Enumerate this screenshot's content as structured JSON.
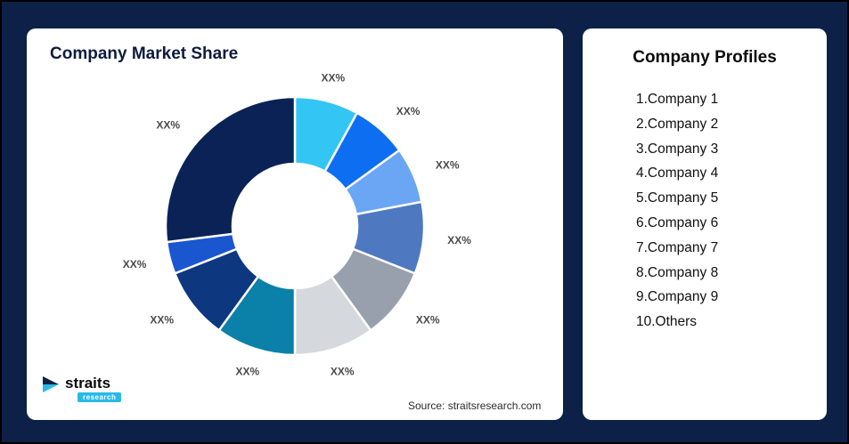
{
  "page": {
    "background_color": "#0d2148"
  },
  "left_card": {
    "title": "Company Market Share",
    "source": "Source: straitsresearch.com"
  },
  "logo": {
    "text": "straits",
    "sub": "research"
  },
  "right_card": {
    "title": "Company Profiles",
    "items": [
      "1.Company 1",
      "2.Company 2",
      "3.Company 3",
      "4.Company 4",
      "5.Company 5",
      "6.Company 6",
      "7.Company 7",
      "8.Company 8",
      "9.Company 9",
      "10.Others"
    ]
  },
  "chart_data": {
    "type": "pie",
    "donut": true,
    "title": "Company Market Share",
    "start_angle_deg": -90,
    "direction": "clockwise",
    "legend_position": "none",
    "slices": [
      {
        "name": "Company 1",
        "value": 8,
        "display_label": "XX%",
        "color": "#33c5f3"
      },
      {
        "name": "Company 2",
        "value": 7,
        "display_label": "XX%",
        "color": "#0d6ef2"
      },
      {
        "name": "Company 3",
        "value": 7,
        "display_label": "XX%",
        "color": "#6ba6f5"
      },
      {
        "name": "Company 4",
        "value": 9,
        "display_label": "XX%",
        "color": "#4e79c0"
      },
      {
        "name": "Company 5",
        "value": 9,
        "display_label": "XX%",
        "color": "#98a0ad"
      },
      {
        "name": "Company 6",
        "value": 10,
        "display_label": "XX%",
        "color": "#d5d9de"
      },
      {
        "name": "Company 7",
        "value": 10,
        "display_label": "XX%",
        "color": "#0b80a8"
      },
      {
        "name": "Company 8",
        "value": 9,
        "display_label": "XX%",
        "color": "#0d3880"
      },
      {
        "name": "Company 9",
        "value": 4,
        "display_label": "XX%",
        "color": "#1a56cf"
      },
      {
        "name": "Others",
        "value": 27,
        "display_label": "XX%",
        "color": "#0a2256"
      }
    ]
  }
}
